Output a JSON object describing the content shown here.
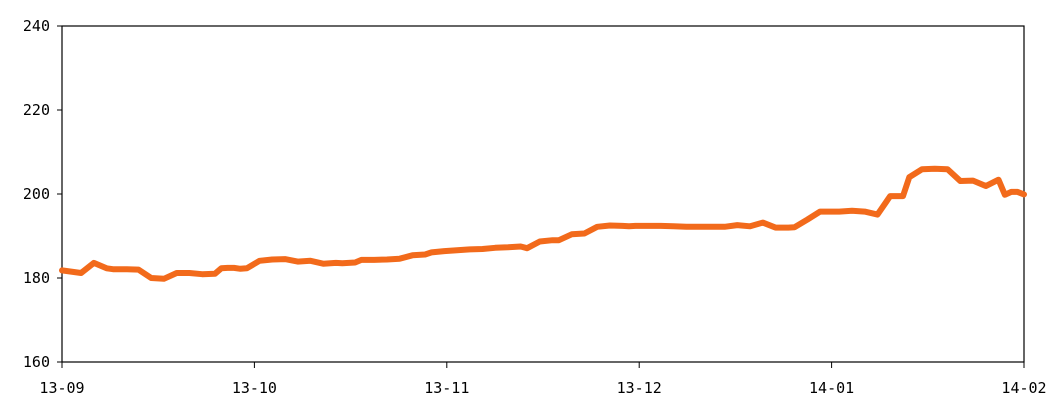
{
  "header": {
    "title": "",
    "unit": ""
  },
  "chart_data": {
    "type": "line",
    "title": "",
    "xlabel": "",
    "ylabel": "",
    "ylim": [
      160,
      240
    ],
    "yticks": [
      "160",
      "180",
      "200",
      "220",
      "240"
    ],
    "xticks": [
      "13-09",
      "13-10",
      "13-11",
      "13-12",
      "14-01",
      "14-02"
    ],
    "grid": false,
    "series": [
      {
        "color": "#f26a1b",
        "x": [
          0,
          3,
          5,
          7,
          8,
          10,
          12,
          14,
          16,
          18,
          20,
          22,
          24,
          25,
          26,
          27,
          28,
          29,
          31,
          33,
          35,
          37,
          39,
          41,
          43,
          44,
          46,
          47,
          49,
          51,
          53,
          55,
          57,
          58,
          60,
          62,
          64,
          66,
          68,
          70,
          72,
          73,
          75,
          77,
          78,
          80,
          82,
          84,
          86,
          88,
          89,
          90,
          92,
          94,
          96,
          98,
          100,
          102,
          104,
          106,
          108,
          110,
          112,
          114,
          115,
          117,
          119,
          121,
          122,
          124,
          126,
          128,
          130,
          132,
          133,
          135,
          137,
          139,
          141,
          143,
          145,
          147,
          148,
          149,
          150,
          151
        ],
        "values": [
          181.8,
          181.2,
          183.6,
          182.3,
          182.1,
          182.1,
          182.0,
          180.0,
          179.8,
          181.2,
          181.2,
          180.9,
          181.0,
          182.3,
          182.4,
          182.4,
          182.2,
          182.3,
          184.1,
          184.4,
          184.5,
          183.9,
          184.1,
          183.4,
          183.6,
          183.5,
          183.7,
          184.3,
          184.3,
          184.4,
          184.6,
          185.4,
          185.6,
          186.1,
          186.4,
          186.6,
          186.8,
          186.9,
          187.2,
          187.3,
          187.5,
          187.1,
          188.7,
          189.0,
          189.0,
          190.4,
          190.6,
          192.2,
          192.5,
          192.4,
          192.3,
          192.4,
          192.4,
          192.4,
          192.3,
          192.2,
          192.2,
          192.2,
          192.2,
          192.6,
          192.3,
          193.2,
          192.0,
          192.0,
          192.1,
          193.9,
          195.8,
          195.8,
          195.8,
          196.0,
          195.8,
          195.1,
          199.5,
          199.5,
          204.0,
          205.9,
          206.0,
          205.9,
          203.1,
          203.2,
          201.9,
          203.4,
          199.8,
          200.5,
          200.5,
          199.9
        ]
      }
    ]
  }
}
